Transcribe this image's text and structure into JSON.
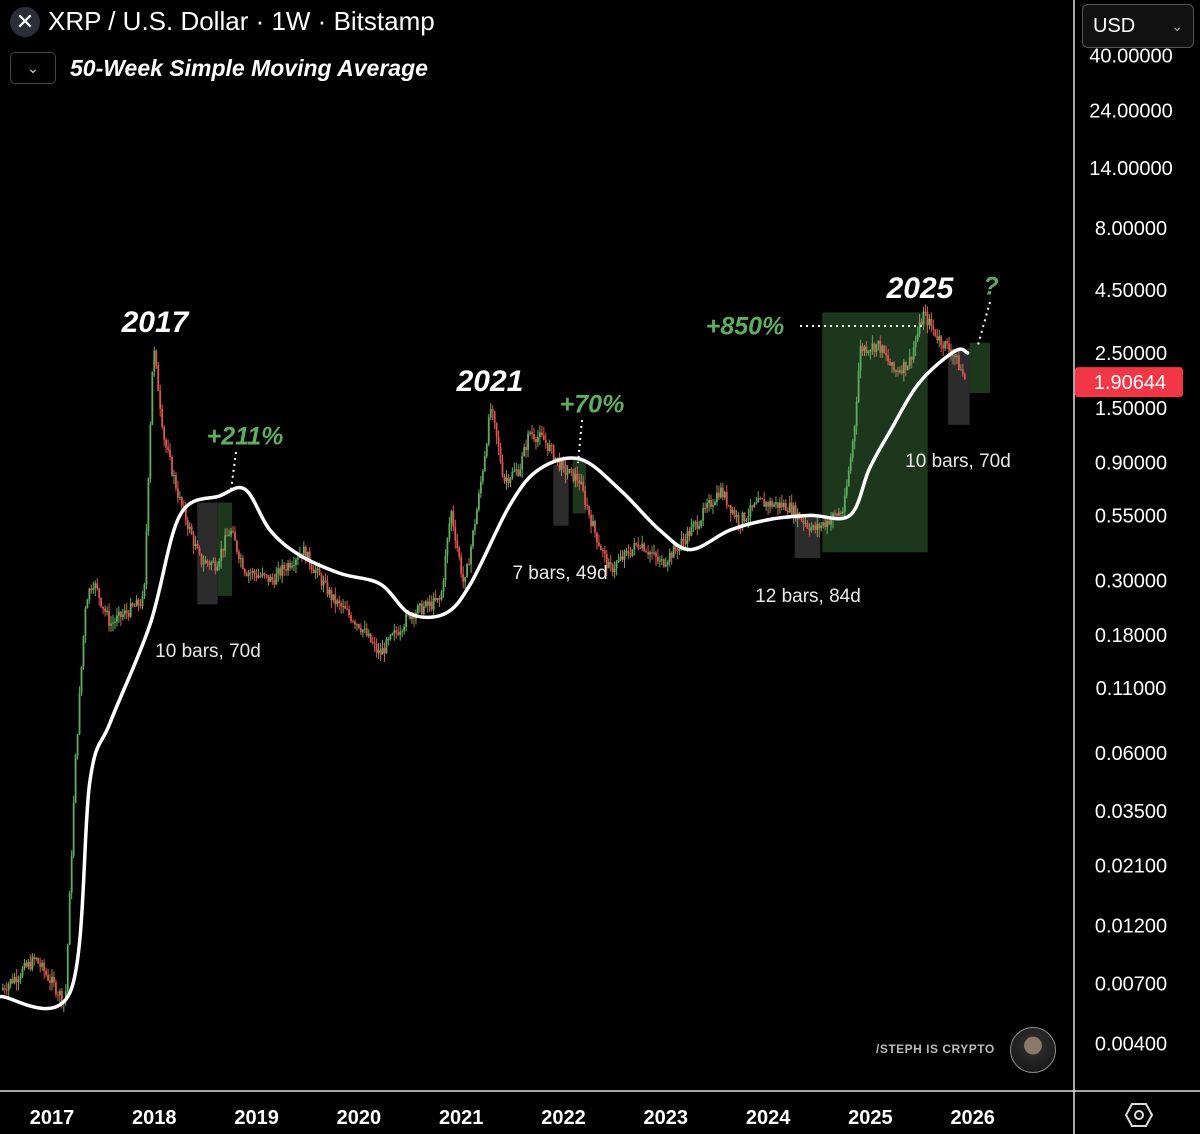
{
  "header": {
    "symbol_icon": "x-logo-icon",
    "title": "XRP / U.S. Dollar · 1W · Bitstamp",
    "indicator_label": "50-Week Simple Moving Average",
    "indicator_toggle_icon": "chevron-down-icon"
  },
  "currency_select": {
    "value": "USD",
    "icon": "chevron-down-icon"
  },
  "watermark": {
    "text": "/STEPH IS CRYPTO"
  },
  "settings_icon": "hexagon-settings-icon",
  "colors": {
    "up": "#5fae5f",
    "down": "#e0554f",
    "sma": "#ffffff",
    "last_price_bg": "#f23645",
    "green_box": "#1f3a1f",
    "gray_box": "#2e2e2e",
    "accent_green": "#5fae5f"
  },
  "chart_data": {
    "type": "candlestick",
    "title": "XRP / U.S. Dollar · 1W · Bitstamp",
    "y_scale": "log",
    "ylim": [
      0.0033,
      50
    ],
    "xlim": [
      2016.5,
      2027
    ],
    "grid": false,
    "y_ticks": [
      "40.00000",
      "24.00000",
      "14.00000",
      "8.00000",
      "4.50000",
      "2.50000",
      "1.50000",
      "0.90000",
      "0.55000",
      "0.30000",
      "0.18000",
      "0.11000",
      "0.06000",
      "0.03500",
      "0.02100",
      "0.01200",
      "0.00700",
      "0.00400"
    ],
    "x_ticks": [
      "2017",
      "2018",
      "2019",
      "2020",
      "2021",
      "2022",
      "2023",
      "2024",
      "2025",
      "2026"
    ],
    "last_price": "1.90644",
    "price_path": [
      [
        2016.5,
        0.0066
      ],
      [
        2016.84,
        0.0088
      ],
      [
        2017.13,
        0.0059
      ],
      [
        2017.23,
        0.056
      ],
      [
        2017.33,
        0.25
      ],
      [
        2017.4,
        0.3
      ],
      [
        2017.57,
        0.2
      ],
      [
        2017.9,
        0.25
      ],
      [
        2017.94,
        0.77
      ],
      [
        2017.99,
        2.7
      ],
      [
        2018.1,
        1.1
      ],
      [
        2018.25,
        0.63
      ],
      [
        2018.45,
        0.36
      ],
      [
        2018.6,
        0.35
      ],
      [
        2018.74,
        0.48
      ],
      [
        2018.89,
        0.33
      ],
      [
        2019.15,
        0.3
      ],
      [
        2019.45,
        0.4
      ],
      [
        2019.75,
        0.25
      ],
      [
        2020.0,
        0.2
      ],
      [
        2020.2,
        0.15
      ],
      [
        2020.5,
        0.22
      ],
      [
        2020.8,
        0.25
      ],
      [
        2020.9,
        0.58
      ],
      [
        2021.03,
        0.28
      ],
      [
        2021.17,
        0.64
      ],
      [
        2021.29,
        1.5
      ],
      [
        2021.42,
        0.77
      ],
      [
        2021.57,
        0.85
      ],
      [
        2021.67,
        1.2
      ],
      [
        2021.82,
        1.1
      ],
      [
        2022.0,
        0.84
      ],
      [
        2022.15,
        0.77
      ],
      [
        2022.3,
        0.48
      ],
      [
        2022.45,
        0.33
      ],
      [
        2022.75,
        0.43
      ],
      [
        2022.95,
        0.35
      ],
      [
        2023.14,
        0.42
      ],
      [
        2023.33,
        0.53
      ],
      [
        2023.53,
        0.7
      ],
      [
        2023.72,
        0.52
      ],
      [
        2023.92,
        0.62
      ],
      [
        2024.2,
        0.6
      ],
      [
        2024.45,
        0.48
      ],
      [
        2024.74,
        0.58
      ],
      [
        2024.84,
        1.2
      ],
      [
        2024.9,
        2.6
      ],
      [
        2025.08,
        2.7
      ],
      [
        2025.23,
        2.1
      ],
      [
        2025.38,
        2.3
      ],
      [
        2025.52,
        3.6
      ],
      [
        2025.66,
        2.9
      ],
      [
        2025.81,
        2.5
      ],
      [
        2025.94,
        1.9
      ]
    ],
    "sma_50w": [
      [
        2016.5,
        0.0062
      ],
      [
        2017.18,
        0.0065
      ],
      [
        2017.37,
        0.046
      ],
      [
        2017.57,
        0.08
      ],
      [
        2017.96,
        0.2
      ],
      [
        2018.25,
        0.55
      ],
      [
        2018.64,
        0.66
      ],
      [
        2018.89,
        0.7
      ],
      [
        2019.13,
        0.48
      ],
      [
        2019.42,
        0.38
      ],
      [
        2019.82,
        0.32
      ],
      [
        2020.21,
        0.29
      ],
      [
        2020.5,
        0.22
      ],
      [
        2020.84,
        0.22
      ],
      [
        2021.09,
        0.29
      ],
      [
        2021.48,
        0.61
      ],
      [
        2021.77,
        0.85
      ],
      [
        2022.16,
        0.93
      ],
      [
        2022.55,
        0.7
      ],
      [
        2022.94,
        0.48
      ],
      [
        2023.24,
        0.4
      ],
      [
        2023.63,
        0.48
      ],
      [
        2024.02,
        0.53
      ],
      [
        2024.41,
        0.55
      ],
      [
        2024.8,
        0.55
      ],
      [
        2024.99,
        0.85
      ],
      [
        2025.19,
        1.2
      ],
      [
        2025.48,
        1.9
      ],
      [
        2025.83,
        2.55
      ],
      [
        2025.95,
        2.5
      ]
    ],
    "annotations": [
      {
        "text": "2017",
        "kind": "cycle"
      },
      {
        "text": "+211%",
        "kind": "gain"
      },
      {
        "text": "10 bars, 70d",
        "kind": "duration"
      },
      {
        "text": "2021",
        "kind": "cycle"
      },
      {
        "text": "+70%",
        "kind": "gain"
      },
      {
        "text": "7 bars, 49d",
        "kind": "duration"
      },
      {
        "text": "12 bars, 84d",
        "kind": "duration"
      },
      {
        "text": "+850%",
        "kind": "gain"
      },
      {
        "text": "2025",
        "kind": "cycle"
      },
      {
        "text": "?",
        "kind": "gain"
      },
      {
        "text": "10 bars, 70d",
        "kind": "duration"
      }
    ],
    "boxes": [
      {
        "kind": "drawdown",
        "x": [
          2018.42,
          2018.62
        ],
        "y": [
          0.24,
          0.62
        ]
      },
      {
        "kind": "rally",
        "x": [
          2018.62,
          2018.76
        ],
        "y": [
          0.26,
          0.62
        ]
      },
      {
        "kind": "drawdown",
        "x": [
          2021.9,
          2022.05
        ],
        "y": [
          0.5,
          0.88
        ]
      },
      {
        "kind": "rally",
        "x": [
          2022.09,
          2022.22
        ],
        "y": [
          0.56,
          0.92
        ]
      },
      {
        "kind": "drawdown",
        "x": [
          2024.26,
          2024.51
        ],
        "y": [
          0.37,
          0.55
        ]
      },
      {
        "kind": "rally",
        "x": [
          2024.53,
          2025.56
        ],
        "y": [
          0.39,
          3.65
        ]
      },
      {
        "kind": "drawdown",
        "x": [
          2025.76,
          2025.97
        ],
        "y": [
          1.28,
          2.6
        ]
      },
      {
        "kind": "rally",
        "x": [
          2025.97,
          2026.17
        ],
        "y": [
          1.72,
          2.75
        ]
      }
    ]
  }
}
